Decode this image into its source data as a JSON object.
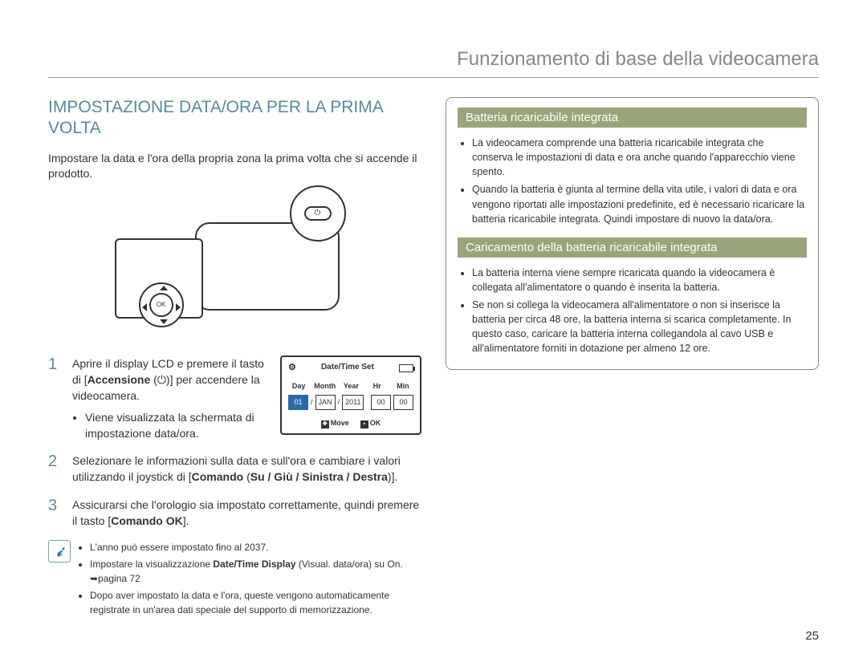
{
  "header": {
    "title": "Funzionamento di base della videocamera"
  },
  "left": {
    "heading": "IMPOSTAZIONE DATA/ORA PER LA PRIMA VOLTA",
    "intro": "Impostare la data e l'ora della propria zona la prima volta che si accende il prodotto.",
    "lcd": {
      "title": "Date/Time Set",
      "cols": {
        "day": "Day",
        "month": "Month",
        "year": "Year",
        "hr": "Hr",
        "min": "Min"
      },
      "vals": {
        "day": "01",
        "month": "JAN",
        "year": "2011",
        "hr": "00",
        "min": "00"
      },
      "sep": "/",
      "move": "Move",
      "ok": "OK"
    },
    "steps": {
      "s1": {
        "num": "1",
        "a": "Aprire il display LCD e premere il tasto di [",
        "b": "Accensione",
        "c": " (",
        "d": ")] per accendere la videocamera.",
        "bullet": "Viene visualizzata la schermata di impostazione data/ora."
      },
      "s2": {
        "num": "2",
        "a": "Selezionare le informazioni sulla data e sull'ora e cambiare i valori utilizzando il joystick di [",
        "b": "Comando",
        "c": " (",
        "d": "Su / Giù / Sinistra / Destra",
        "e": ")]."
      },
      "s3": {
        "num": "3",
        "a": "Assicurarsi che l'orologio sia impostato correttamente, quindi premere il tasto [",
        "b": "Comando OK",
        "c": "]."
      }
    },
    "notes": {
      "n1": "L'anno può essere impostato fino al 2037.",
      "n2a": "Impostare la visualizzazione ",
      "n2b": "Date/Time Display",
      "n2c": " (Visual. data/ora) su On. ➥pagina 72",
      "n3": "Dopo aver impostato la data e l'ora, queste vengono automaticamente registrate in un'area dati speciale del supporto di memorizzazione."
    }
  },
  "right": {
    "h1": "Batteria ricaricabile integrata",
    "b1_1": "La videocamera comprende una batteria ricaricabile integrata che conserva le impostazioni di data e ora anche quando l'apparecchio viene spento.",
    "b1_2": "Quando la batteria è giunta al termine della vita utile, i valori di data e ora vengono riportati alle impostazioni predefinite, ed è necessario ricaricare la batteria ricaricabile integrata. Quindi impostare di nuovo la data/ora.",
    "h2": "Caricamento della batteria ricaricabile integrata",
    "b2_1": "La batteria interna viene sempre ricaricata quando la videocamera è collegata all'alimentatore o quando è inserita la batteria.",
    "b2_2": "Se non si collega la videocamera all'alimentatore o non si inserisce la batteria per circa 48 ore, la batteria interna si scarica completamente. In questo caso, caricare la batteria interna collegandola al cavo USB e all'alimentatore forniti in dotazione per almeno 12 ore."
  },
  "page": "25"
}
